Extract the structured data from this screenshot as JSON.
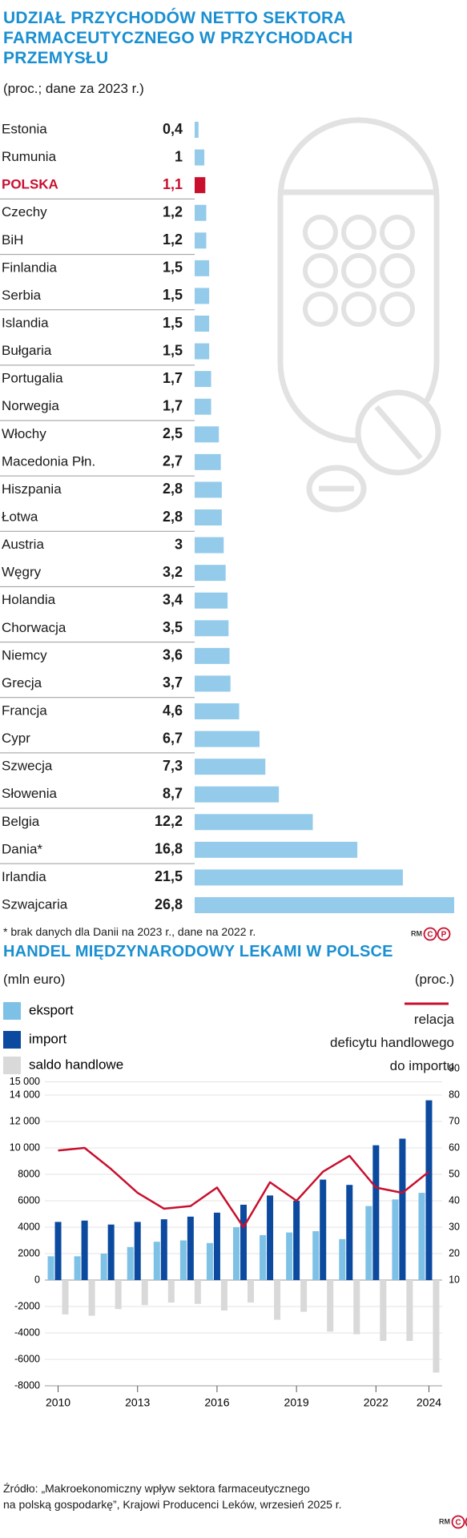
{
  "chart_data": [
    {
      "type": "bar",
      "orientation": "horizontal",
      "title": "UDZIAŁ PRZYCHODÓW NETTO SEKTORA\nFARMACEUTYCZNEGO W PRZYCHODACH\nPRZEMYSŁU",
      "subtitle": "(proc.; dane za 2023 r.)",
      "categories": [
        "Estonia",
        "Rumunia",
        "POLSKA",
        "Czechy",
        "BiH",
        "Finlandia",
        "Serbia",
        "Islandia",
        "Bułgaria",
        "Portugalia",
        "Norwegia",
        "Włochy",
        "Macedonia Płn.",
        "Hiszpania",
        "Łotwa",
        "Austria",
        "Węgry",
        "Holandia",
        "Chorwacja",
        "Niemcy",
        "Grecja",
        "Francja",
        "Cypr",
        "Szwecja",
        "Słowenia",
        "Belgia",
        "Dania*",
        "Irlandia",
        "Szwajcaria"
      ],
      "values": [
        0.4,
        1,
        1.1,
        1.2,
        1.2,
        1.5,
        1.5,
        1.5,
        1.5,
        1.7,
        1.7,
        2.5,
        2.7,
        2.8,
        2.8,
        3,
        3.2,
        3.4,
        3.5,
        3.6,
        3.7,
        4.6,
        6.7,
        7.3,
        8.7,
        12.2,
        16.8,
        21.5,
        26.8
      ],
      "value_labels": [
        "0,4",
        "1",
        "1,1",
        "1,2",
        "1,2",
        "1,5",
        "1,5",
        "1,5",
        "1,5",
        "1,7",
        "1,7",
        "2,5",
        "2,7",
        "2,8",
        "2,8",
        "3",
        "3,2",
        "3,4",
        "3,5",
        "3,6",
        "3,7",
        "4,6",
        "6,7",
        "7,3",
        "8,7",
        "12,2",
        "16,8",
        "21,5",
        "26,8"
      ],
      "color": "#94cbea",
      "highlight_category": "POLSKA",
      "highlight_color": "#c8102e",
      "note": "* brak danych dla Danii na 2023 r., dane na 2022 r.",
      "credit": "RM",
      "badge": [
        "C",
        "P"
      ]
    },
    {
      "type": "combo",
      "title": "HANDEL MIĘDZYNARODOWY LEKAMI W POLSCE",
      "y_label": "(mln euro)",
      "y2_label": "(proc.)",
      "categories": [
        "2010",
        null,
        null,
        "2013",
        null,
        null,
        "2016",
        null,
        null,
        "2019",
        null,
        null,
        "2022",
        null,
        "2024"
      ],
      "series": [
        {
          "name": "eksport",
          "type": "bar",
          "color": "#7ec1e6",
          "values": [
            1800,
            1800,
            2000,
            2500,
            2900,
            3000,
            2800,
            4000,
            3400,
            3600,
            3700,
            3100,
            5600,
            6100,
            6600
          ]
        },
        {
          "name": "import",
          "type": "bar",
          "color": "#0b4a9e",
          "values": [
            4400,
            4500,
            4200,
            4400,
            4600,
            4800,
            5100,
            5700,
            6400,
            6000,
            7600,
            7200,
            10200,
            10700,
            13600
          ]
        },
        {
          "name": "saldo handlowe",
          "type": "bar",
          "color": "#d9d9d9",
          "values": [
            -2600,
            -2700,
            -2200,
            -1900,
            -1700,
            -1800,
            -2300,
            -1700,
            -3000,
            -2400,
            -3900,
            -4100,
            -4600,
            -4600,
            -7000
          ]
        },
        {
          "name": "relacja\ndeficytu handlowego\ndo importu",
          "type": "line",
          "axis": "y2",
          "color": "#c8102e",
          "values": [
            59,
            60,
            52,
            43,
            37,
            38,
            45,
            30,
            47,
            40,
            51,
            57,
            45,
            43,
            51
          ]
        }
      ],
      "ylim": [
        -8000,
        16000
      ],
      "yticks": [
        -8000,
        -6000,
        -4000,
        -2000,
        0,
        2000,
        4000,
        6000,
        8000,
        {
          "value": 10000,
          "label": "10 000"
        },
        {
          "value": 12000,
          "label": "12 000"
        },
        {
          "value": 14000,
          "label": "14 000"
        },
        {
          "value": 15000,
          "label": "15 000"
        }
      ],
      "y2lim": [
        -30,
        90
      ],
      "y2ticks": [
        10,
        20,
        30,
        40,
        50,
        60,
        70,
        80,
        90
      ],
      "grid": true,
      "source": "Źródło: „Makroekonomiczny wpływ sektora farmaceutycznego\nna polską gospodarkę”, Krajowi Producenci Leków, wrzesień 2025 r.",
      "credit": "RM",
      "badge": [
        "C",
        "P"
      ]
    }
  ]
}
